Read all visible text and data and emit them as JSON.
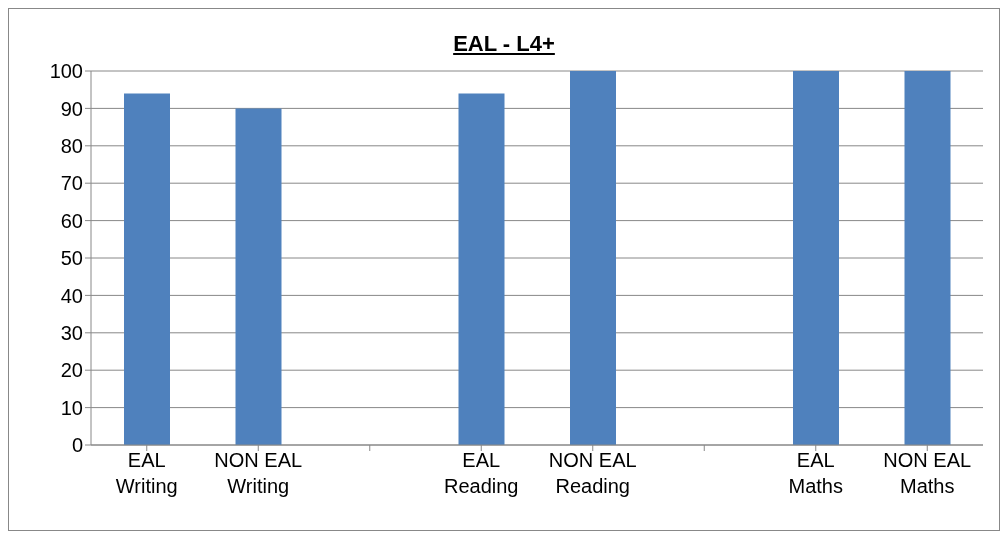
{
  "chart_data": {
    "type": "bar",
    "title": "EAL - L4+",
    "categories": [
      "EAL Writing",
      "NON EAL Writing",
      null,
      "EAL Reading",
      "NON EAL Reading",
      null,
      "EAL Maths",
      "NON EAL Maths"
    ],
    "values": [
      94,
      90,
      null,
      94,
      100,
      null,
      100,
      100
    ],
    "color": "#4f81bd",
    "ylim": [
      0,
      100
    ],
    "yticks": [
      0,
      10,
      20,
      30,
      40,
      50,
      60,
      70,
      80,
      90,
      100
    ],
    "grid": "y",
    "legend": false
  }
}
